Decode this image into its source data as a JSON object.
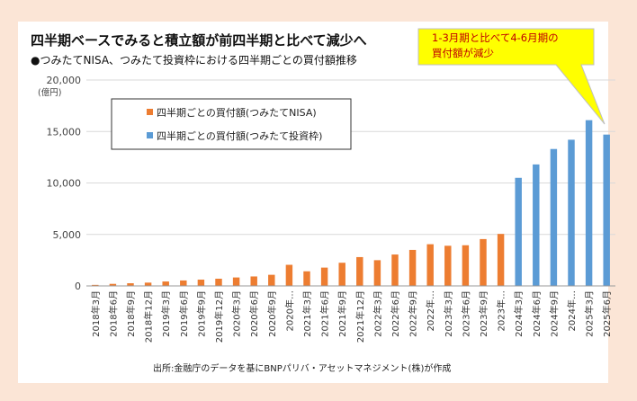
{
  "title": "四半期ベースでみると積立額が前四半期と比べて減少へ",
  "subtitle": "●つみたてNISA、つみたて投資枠における四半期ごとの買付額推移",
  "callout": {
    "line1": "1-3月期と比べて4-6月期の",
    "line2": "買付額が減少"
  },
  "source": "出所:金融庁のデータを基にBNPパリバ・アセットマネジメント(株)が作成",
  "colors": {
    "nisa": "#ed7d31",
    "tsumitate": "#5b9bd5",
    "callout_fill": "#ffff00",
    "callout_text": "#c00000",
    "background": "#fbe5d6"
  },
  "chart_data": {
    "type": "bar",
    "ylabel": "(億円)",
    "ylim": [
      0,
      20000
    ],
    "yticks": [
      "0",
      "5,000",
      "10,000",
      "15,000",
      "20,000"
    ],
    "grid": true,
    "legend_position": "top-left",
    "categories": [
      "2018年3月",
      "2018年6月",
      "2018年9月",
      "2018年12月",
      "2019年3月",
      "2019年6月",
      "2019年9月",
      "2019年12月",
      "2020年3月",
      "2020年6月",
      "2020年9月",
      "2020年…",
      "2021年3月",
      "2021年6月",
      "2021年9月",
      "2021年12月",
      "2022年3月",
      "2022年6月",
      "2022年9月",
      "2022年…",
      "2023年3月",
      "2023年6月",
      "2023年9月",
      "2023年…",
      "2024年3月",
      "2024年6月",
      "2024年9月",
      "2024年…",
      "2025年3月",
      "2025年6月"
    ],
    "series": [
      {
        "name": "四半期ごとの買付額(つみたてNISA)",
        "values": [
          100,
          200,
          260,
          320,
          430,
          530,
          610,
          700,
          820,
          920,
          1080,
          2050,
          1420,
          1780,
          2250,
          2800,
          2500,
          3050,
          3500,
          4050,
          3900,
          3950,
          4550,
          5050,
          null,
          null,
          null,
          null,
          null,
          null
        ]
      },
      {
        "name": "四半期ごとの買付額(つみたて投資枠)",
        "values": [
          null,
          null,
          null,
          null,
          null,
          null,
          null,
          null,
          null,
          null,
          null,
          null,
          null,
          null,
          null,
          null,
          null,
          null,
          null,
          null,
          null,
          null,
          null,
          null,
          10500,
          11800,
          13300,
          14200,
          16100,
          14700
        ]
      }
    ]
  }
}
